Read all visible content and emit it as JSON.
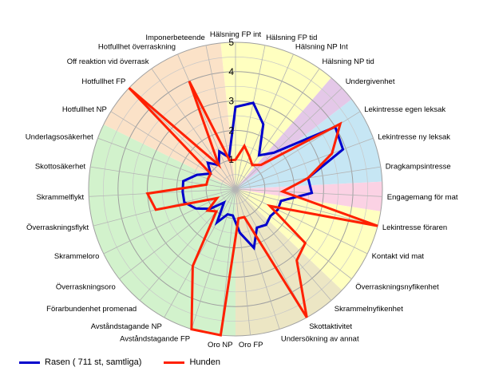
{
  "chart_data": {
    "type": "radar",
    "title": "",
    "rlim": [
      0,
      5
    ],
    "r_ticks": [
      "1",
      "2",
      "3",
      "4",
      "5"
    ],
    "grid": true,
    "legend_position": "bottom",
    "categories": [
      "Hälsning FP int",
      "Hälsning FP tid",
      "Hälsning NP Int",
      "Hälsning NP tid",
      "Undergivenhet",
      "Lekintresse egen leksak",
      "Lekintresse ny leksak",
      "Dragkampsintresse",
      "Engagemang för mat",
      "Lekintresse föraren",
      "Kontakt vid mat",
      "Överraskningsnyfikenhet",
      "Skrammelnyfikenhet",
      "Skottaktivitet",
      "Undersökning av annat",
      "Oro FP",
      "Oro NP",
      "Avståndstagande FP",
      "Avståndstagande NP",
      "Förarbundenhet promenad",
      "Överraskningsoro",
      "Skrammeloro",
      "Överraskningsflykt",
      "Skrammelflykt",
      "Skottosäkerhet",
      "Underlagsosäkerhet",
      "Hotfullhet NP",
      "Hotfullhet FP",
      "Off reaktion vid överrask",
      "Hotfullhet överraskning",
      "Imponerbeteende"
    ],
    "series": [
      {
        "name": "Rasen ( 711 st, samtliga)",
        "color": "#0000cc",
        "values": [
          2.8,
          3.0,
          2.4,
          1.4,
          1.8,
          4.0,
          3.9,
          2.5,
          2.6,
          1.6,
          1.6,
          1.5,
          1.6,
          1.5,
          2.1,
          1.5,
          0.9,
          0.9,
          1.3,
          0.6,
          1.1,
          1.5,
          1.8,
          1.8,
          1.8,
          1.4,
          1.0,
          1.3,
          1.0,
          1.4,
          1.1
        ]
      },
      {
        "name": "Hunden",
        "color": "#ff2000",
        "values": [
          1.0,
          1.5,
          1.2,
          1.0,
          1.2,
          4.2,
          3.5,
          2.5,
          1.6,
          5.0,
          1.3,
          3.0,
          3.2,
          5.0,
          1.0,
          1.0,
          5.0,
          5.0,
          3.0,
          1.0,
          1.2,
          0.7,
          2.8,
          3.0,
          1.0,
          1.0,
          1.0,
          5.0,
          1.0,
          4.0,
          1.0
        ]
      }
    ],
    "background_sectors": [
      {
        "from_index": 0,
        "to_index": 3,
        "color": "#ffffc0"
      },
      {
        "from_index": 4,
        "to_index": 4,
        "color": "#e4c8e8"
      },
      {
        "from_index": 5,
        "to_index": 7,
        "color": "#c6e6f4"
      },
      {
        "from_index": 8,
        "to_index": 8,
        "color": "#fbd2e4"
      },
      {
        "from_index": 9,
        "to_index": 11,
        "color": "#ffffc0"
      },
      {
        "from_index": 12,
        "to_index": 15,
        "color": "#ece6c4"
      },
      {
        "from_index": 16,
        "to_index": 25,
        "color": "#d2f2cc"
      },
      {
        "from_index": 26,
        "to_index": 30,
        "color": "#fbe2c8"
      }
    ]
  }
}
